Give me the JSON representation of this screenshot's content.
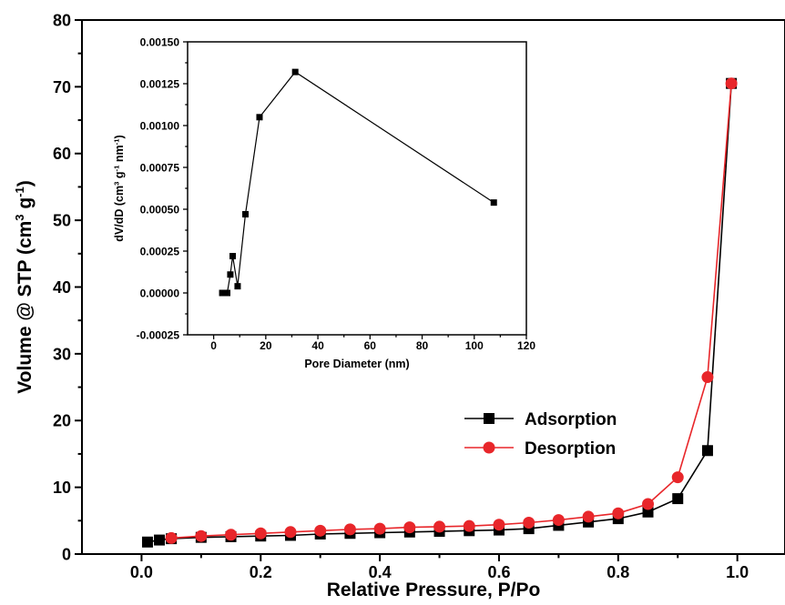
{
  "chart_data": [
    {
      "type": "line",
      "xlabel": "Relative Pressure, P/Po",
      "ylabel": "Volume @ STP (cm",
      "ylabel_units": {
        "sup1": "3",
        "mid": " g",
        "sup2": "-1",
        "end": ")"
      },
      "xlim": [
        -0.1,
        1.08
      ],
      "ylim": [
        0,
        80
      ],
      "xticks": [
        "0.0",
        "0.2",
        "0.4",
        "0.6",
        "0.8",
        "1.0"
      ],
      "yticks": [
        "0",
        "10",
        "20",
        "30",
        "40",
        "50",
        "60",
        "70",
        "80"
      ],
      "legend_position": "center-right",
      "series": [
        {
          "name": "Adsorption",
          "color": "#000000",
          "marker": "square",
          "x": [
            0.01,
            0.03,
            0.05,
            0.1,
            0.15,
            0.2,
            0.25,
            0.3,
            0.35,
            0.4,
            0.45,
            0.5,
            0.55,
            0.6,
            0.65,
            0.7,
            0.75,
            0.8,
            0.85,
            0.9,
            0.95,
            0.99
          ],
          "y": [
            1.8,
            2.1,
            2.3,
            2.5,
            2.6,
            2.7,
            2.8,
            3.0,
            3.1,
            3.2,
            3.3,
            3.4,
            3.5,
            3.6,
            3.8,
            4.3,
            4.8,
            5.3,
            6.3,
            8.3,
            15.5,
            70.5
          ]
        },
        {
          "name": "Desorption",
          "color": "#e8262a",
          "marker": "circle",
          "x": [
            0.05,
            0.1,
            0.15,
            0.2,
            0.25,
            0.3,
            0.35,
            0.4,
            0.45,
            0.5,
            0.55,
            0.6,
            0.65,
            0.7,
            0.75,
            0.8,
            0.85,
            0.9,
            0.95,
            0.99
          ],
          "y": [
            2.4,
            2.7,
            2.9,
            3.1,
            3.3,
            3.5,
            3.7,
            3.8,
            4.0,
            4.1,
            4.2,
            4.4,
            4.7,
            5.1,
            5.6,
            6.1,
            7.5,
            11.5,
            26.5,
            70.5
          ]
        }
      ]
    },
    {
      "type": "line",
      "xlabel": "Pore Diameter (nm)",
      "ylabel": "dV/dD (cm",
      "ylabel_units": {
        "sup1": "3",
        "mid": " g",
        "sup2": "-1",
        "mid2": " nm",
        "sup3": "-1",
        "end": ")"
      },
      "xlim": [
        -10,
        120
      ],
      "ylim": [
        -0.00025,
        0.0015
      ],
      "xticks": [
        "0",
        "20",
        "40",
        "60",
        "80",
        "100",
        "120"
      ],
      "yticks": [
        "-0.00025",
        "0.00000",
        "0.00025",
        "0.00050",
        "0.00075",
        "0.00100",
        "0.00125",
        "0.00150"
      ],
      "series": [
        {
          "color": "#000000",
          "marker": "square",
          "x": [
            3.3,
            5.2,
            6.4,
            7.3,
            9.2,
            12.2,
            17.6,
            31.3,
            107.5
          ],
          "y": [
            0.0,
            0.0,
            0.00011,
            0.00022,
            4e-05,
            0.00047,
            0.00105,
            0.00132,
            0.00054
          ]
        }
      ]
    }
  ]
}
